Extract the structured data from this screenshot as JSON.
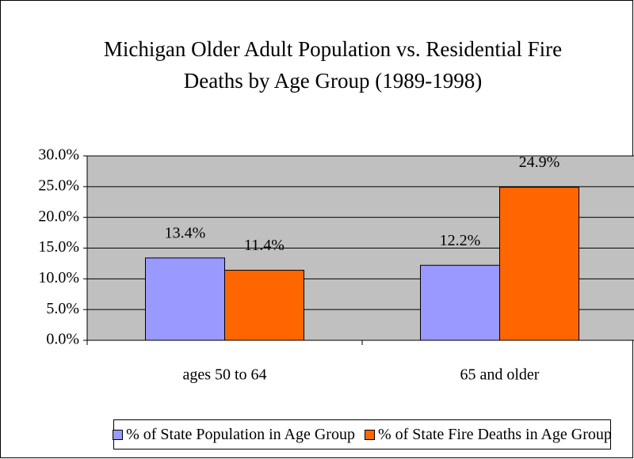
{
  "chart_data": {
    "type": "bar",
    "title": "Michigan Older Adult Population vs. Residential Fire Deaths by Age Group (1989-1998)",
    "categories": [
      "ages 50 to 64",
      "65 and older"
    ],
    "series": [
      {
        "name": "% of State Population in Age Group",
        "color": "#9999ff",
        "values": [
          13.4,
          12.2
        ],
        "value_labels": [
          "13.4%",
          "12.2%"
        ]
      },
      {
        "name": "% of State Fire Deaths in Age Group",
        "color": "#ff6600",
        "values": [
          11.4,
          24.9
        ],
        "value_labels": [
          "11.4%",
          "24.9%"
        ]
      }
    ],
    "ylim": [
      0,
      30
    ],
    "yticks": [
      {
        "value": 0,
        "label": "0.0%"
      },
      {
        "value": 5,
        "label": "5.0%"
      },
      {
        "value": 10,
        "label": "10.0%"
      },
      {
        "value": 15,
        "label": "15.0%"
      },
      {
        "value": 20,
        "label": "20.0%"
      },
      {
        "value": 25,
        "label": "25.0%"
      },
      {
        "value": 30,
        "label": "30.0%"
      }
    ],
    "grid": true,
    "legend": "bottom",
    "plot_background": "#c0c0c0"
  }
}
